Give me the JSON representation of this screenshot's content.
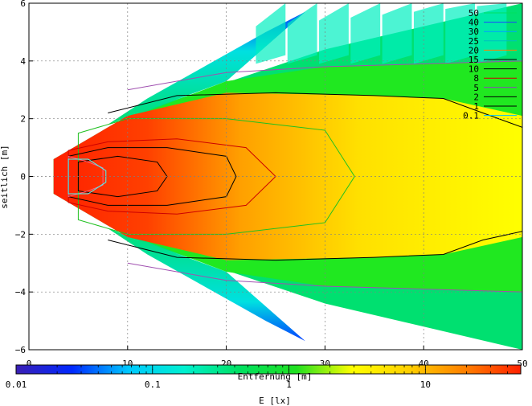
{
  "chart_data": {
    "type": "heatmap",
    "title": "",
    "xlabel": "Entfernung [m]",
    "ylabel": "seitlich [m]",
    "xlim": [
      0,
      50
    ],
    "ylim": [
      -6,
      6
    ],
    "x_ticks": [
      "0",
      "10",
      "20",
      "30",
      "40",
      "50"
    ],
    "y_ticks": [
      "6",
      "4",
      "2",
      "0",
      "−2",
      "−4",
      "−6"
    ],
    "x_tick_values": [
      0,
      10,
      20,
      30,
      40,
      50
    ],
    "y_tick_values": [
      6,
      4,
      2,
      0,
      -2,
      -4,
      -6
    ],
    "grid": true,
    "colorbar": {
      "label": "E [lx]",
      "scale": "log",
      "range": [
        0.01,
        50
      ],
      "tick_labels": [
        "0.01",
        "0.1",
        "1",
        "10"
      ],
      "tick_values": [
        0.01,
        0.1,
        1,
        10
      ],
      "colors": [
        "#3a1fb4",
        "#0028ff",
        "#00c8ff",
        "#00f0d0",
        "#00e060",
        "#20e020",
        "#ffff00",
        "#ffd000",
        "#ff8000",
        "#ff2000"
      ]
    },
    "legend": {
      "placement": "top-right",
      "entries": [
        {
          "label": "50",
          "color": "#00e060"
        },
        {
          "label": "40",
          "color": "#2040ff"
        },
        {
          "label": "30",
          "color": "#00a0ff"
        },
        {
          "label": "25",
          "color": "#00c0c0"
        },
        {
          "label": "20",
          "color": "#ff8000"
        },
        {
          "label": "15",
          "color": "#000000"
        },
        {
          "label": "10",
          "color": "#000000"
        },
        {
          "label": "8",
          "color": "#cc0000"
        },
        {
          "label": "5",
          "color": "#9040c0"
        },
        {
          "label": "2",
          "color": "#000000"
        },
        {
          "label": "1",
          "color": "#000000"
        },
        {
          "label": "0.1",
          "color": "#00c0ff"
        }
      ]
    },
    "contours": [
      {
        "level": 1,
        "color": "#000000",
        "points": [
          [
            8,
            2.2
          ],
          [
            15,
            2.8
          ],
          [
            25,
            2.9
          ],
          [
            35,
            2.8
          ],
          [
            42,
            2.7
          ],
          [
            46,
            2.2
          ],
          [
            50,
            1.7
          ]
        ]
      },
      {
        "level": 1,
        "color": "#000000",
        "points": [
          [
            8,
            -2.2
          ],
          [
            15,
            -2.8
          ],
          [
            25,
            -2.9
          ],
          [
            35,
            -2.8
          ],
          [
            42,
            -2.7
          ],
          [
            46,
            -2.2
          ],
          [
            50,
            -1.9
          ]
        ]
      },
      {
        "level": 0.1,
        "color": "#a050b0",
        "points": [
          [
            10,
            3.0
          ],
          [
            20,
            3.6
          ],
          [
            30,
            3.8
          ],
          [
            40,
            3.9
          ],
          [
            50,
            4.0
          ]
        ]
      },
      {
        "level": 0.1,
        "color": "#a050b0",
        "points": [
          [
            10,
            -3.0
          ],
          [
            20,
            -3.6
          ],
          [
            30,
            -3.8
          ],
          [
            40,
            -3.9
          ],
          [
            50,
            -4.0
          ]
        ]
      },
      {
        "level": 5,
        "color": "#20c020",
        "closed": true,
        "points": [
          [
            5,
            1.5
          ],
          [
            10,
            2.0
          ],
          [
            20,
            2.0
          ],
          [
            30,
            1.6
          ],
          [
            33,
            0
          ],
          [
            30,
            -1.6
          ],
          [
            20,
            -2.0
          ],
          [
            10,
            -2.0
          ],
          [
            5,
            -1.5
          ]
        ]
      },
      {
        "level": 10,
        "color": "#cc0000",
        "closed": true,
        "points": [
          [
            4,
            0.9
          ],
          [
            8,
            1.2
          ],
          [
            15,
            1.3
          ],
          [
            22,
            1.0
          ],
          [
            25,
            0
          ],
          [
            22,
            -1.0
          ],
          [
            15,
            -1.3
          ],
          [
            8,
            -1.2
          ],
          [
            4,
            -0.9
          ]
        ]
      },
      {
        "level": 15,
        "color": "#000000",
        "closed": true,
        "points": [
          [
            4,
            0.7
          ],
          [
            8,
            1.0
          ],
          [
            14,
            1.0
          ],
          [
            20,
            0.7
          ],
          [
            21,
            0
          ],
          [
            20,
            -0.7
          ],
          [
            14,
            -1.0
          ],
          [
            8,
            -1.0
          ],
          [
            4,
            -0.7
          ]
        ]
      },
      {
        "level": 20,
        "color": "#000000",
        "closed": true,
        "points": [
          [
            5,
            0.5
          ],
          [
            9,
            0.7
          ],
          [
            13,
            0.5
          ],
          [
            14,
            0
          ],
          [
            13,
            -0.5
          ],
          [
            9,
            -0.7
          ],
          [
            5,
            -0.5
          ]
        ]
      },
      {
        "level": 25,
        "color": "#ff6080",
        "closed": true,
        "points": [
          [
            4,
            0.7
          ],
          [
            6,
            0.5
          ],
          [
            7.5,
            0.3
          ],
          [
            7.5,
            -0.3
          ],
          [
            6,
            -0.5
          ],
          [
            4,
            -0.7
          ]
        ]
      },
      {
        "level": 30,
        "color": "#40ffff",
        "closed": true,
        "points": [
          [
            4,
            0.6
          ],
          [
            6,
            0.6
          ],
          [
            7.8,
            0.2
          ],
          [
            7.8,
            -0.2
          ],
          [
            6,
            -0.6
          ],
          [
            4,
            -0.6
          ]
        ]
      }
    ]
  }
}
